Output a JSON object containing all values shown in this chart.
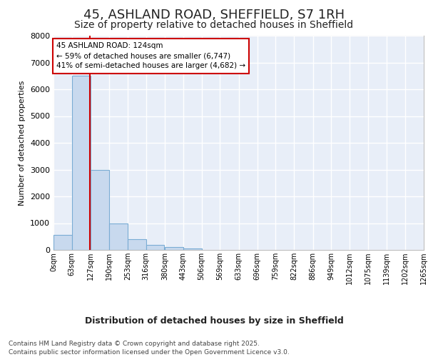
{
  "title1": "45, ASHLAND ROAD, SHEFFIELD, S7 1RH",
  "title2": "Size of property relative to detached houses in Sheffield",
  "xlabel": "Distribution of detached houses by size in Sheffield",
  "ylabel": "Number of detached properties",
  "bin_edges": [
    0,
    63,
    127,
    190,
    253,
    316,
    380,
    443,
    506,
    569,
    633,
    696,
    759,
    822,
    886,
    949,
    1012,
    1075,
    1139,
    1202,
    1265
  ],
  "bar_heights": [
    550,
    6500,
    3000,
    1000,
    400,
    175,
    100,
    50,
    0,
    0,
    0,
    0,
    0,
    0,
    0,
    0,
    0,
    0,
    0,
    0
  ],
  "bar_color": "#c8d9ee",
  "bar_edge_color": "#7aacd4",
  "property_size": 124,
  "property_label": "45 ASHLAND ROAD: 124sqm",
  "annotation_line1": "← 59% of detached houses are smaller (6,747)",
  "annotation_line2": "41% of semi-detached houses are larger (4,682) →",
  "annotation_box_color": "#cc0000",
  "vline_color": "#cc0000",
  "background_color": "#e8eef8",
  "grid_color": "#ffffff",
  "ylim": [
    0,
    8000
  ],
  "yticks": [
    0,
    1000,
    2000,
    3000,
    4000,
    5000,
    6000,
    7000,
    8000
  ],
  "footer_line1": "Contains HM Land Registry data © Crown copyright and database right 2025.",
  "footer_line2": "Contains public sector information licensed under the Open Government Licence v3.0.",
  "title1_fontsize": 13,
  "title2_fontsize": 10,
  "ylabel_fontsize": 8,
  "xlabel_fontsize": 9,
  "footer_fontsize": 6.5
}
